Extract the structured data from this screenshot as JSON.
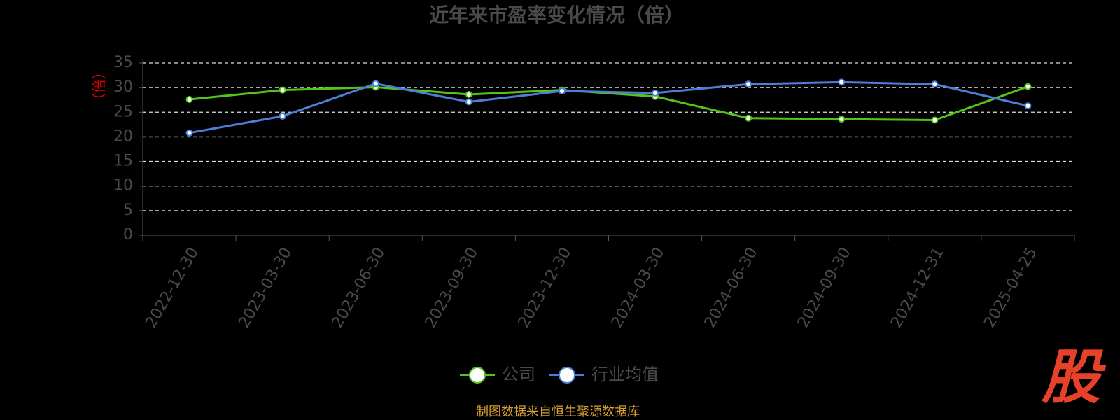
{
  "chart_data": {
    "type": "line",
    "title": "近年来市盈率变化情况（倍）",
    "y_label": "（倍）",
    "categories": [
      "2022-12-30",
      "2023-03-30",
      "2023-06-30",
      "2023-09-30",
      "2023-12-30",
      "2024-03-30",
      "2024-06-30",
      "2024-09-30",
      "2024-12-31",
      "2025-04-25"
    ],
    "series": [
      {
        "name": "公司",
        "color": "#52c41a",
        "values": [
          27.6,
          29.5,
          30.1,
          28.6,
          29.5,
          28.2,
          23.8,
          23.6,
          23.4,
          30.2
        ]
      },
      {
        "name": "行业均值",
        "color": "#4e7fd8",
        "values": [
          20.8,
          24.2,
          30.8,
          27.1,
          29.3,
          28.9,
          30.7,
          31.1,
          30.7,
          26.3
        ]
      }
    ],
    "ylim": [
      0,
      35
    ],
    "yticks": [
      0,
      5,
      10,
      15,
      20,
      25,
      30,
      35
    ],
    "grid": true,
    "source": "制图数据来自恒生聚源数据库",
    "logo": "股"
  }
}
